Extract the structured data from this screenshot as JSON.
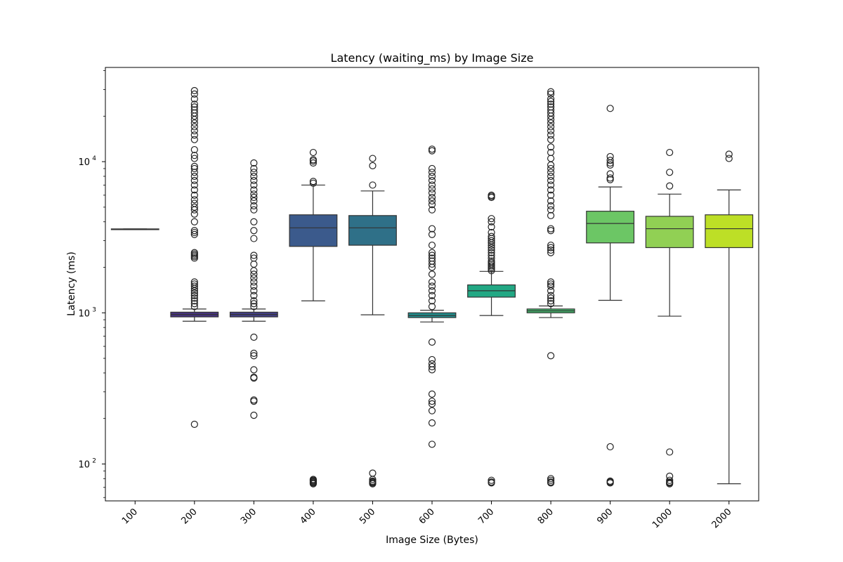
{
  "chart_data": {
    "type": "box",
    "title": "Latency (waiting_ms) by Image Size",
    "xlabel": "Image Size (Bytes)",
    "ylabel": "Latency (ms)",
    "yscale": "log",
    "ylim": [
      57,
      42000
    ],
    "y_tick_labels": [
      {
        "value": 100,
        "base": "10",
        "exp": "2"
      },
      {
        "value": 1000,
        "base": "10",
        "exp": "3"
      },
      {
        "value": 10000,
        "base": "10",
        "exp": "4"
      }
    ],
    "categories": [
      "100",
      "200",
      "300",
      "400",
      "500",
      "600",
      "700",
      "800",
      "900",
      "1000",
      "2000"
    ],
    "colors": [
      "#46327e",
      "#46327e",
      "#433e85",
      "#3b5a8c",
      "#2f7088",
      "#218f8d",
      "#22a884",
      "#44bf70",
      "#6cc665",
      "#91d054",
      "#bddf26"
    ],
    "boxes": [
      {
        "q1": 3550,
        "median": 3570,
        "q3": 3590,
        "whislo": 3550,
        "whishi": 3590,
        "fliers": []
      },
      {
        "q1": 940,
        "median": 975,
        "q3": 1010,
        "whislo": 880,
        "whishi": 1060,
        "fliers": [
          183,
          1100,
          1150,
          1200,
          1250,
          1300,
          1350,
          1400,
          1450,
          1500,
          1550,
          1600,
          2300,
          2350,
          2400,
          2450,
          2500,
          3300,
          3400,
          3500,
          4000,
          4500,
          4800,
          5000,
          5300,
          5600,
          6000,
          6500,
          7000,
          7500,
          8000,
          8500,
          9000,
          9300,
          10500,
          11000,
          12000,
          14000,
          15000,
          16000,
          17000,
          18000,
          19000,
          20000,
          21000,
          22000,
          23000,
          24000,
          26000,
          28000,
          29500
        ]
      },
      {
        "q1": 940,
        "median": 975,
        "q3": 1010,
        "whislo": 880,
        "whishi": 1060,
        "fliers": [
          210,
          260,
          265,
          370,
          375,
          420,
          520,
          540,
          690,
          1100,
          1150,
          1200,
          1300,
          1400,
          1500,
          1600,
          1700,
          1800,
          1900,
          2100,
          2300,
          2400,
          3100,
          3500,
          4000,
          4800,
          5100,
          5500,
          5800,
          6100,
          6500,
          7000,
          7500,
          8000,
          8500,
          9000,
          9800
        ]
      },
      {
        "q1": 2750,
        "median": 3650,
        "q3": 4450,
        "whislo": 1200,
        "whishi": 7000,
        "fliers": [
          74,
          75,
          76,
          77,
          78,
          79,
          7200,
          7400,
          9800,
          10100,
          10300,
          11500
        ]
      },
      {
        "q1": 2800,
        "median": 3650,
        "q3": 4400,
        "whislo": 970,
        "whishi": 6400,
        "fliers": [
          74,
          75,
          76,
          77,
          79,
          87,
          7000,
          9400,
          10500
        ]
      },
      {
        "q1": 930,
        "median": 960,
        "q3": 1000,
        "whislo": 870,
        "whishi": 1040,
        "fliers": [
          135,
          187,
          225,
          250,
          260,
          290,
          420,
          440,
          460,
          490,
          640,
          1100,
          1200,
          1300,
          1400,
          1500,
          1600,
          1800,
          2000,
          2100,
          2200,
          2300,
          2400,
          2500,
          2800,
          3300,
          3600,
          4800,
          5200,
          5500,
          5800,
          6200,
          6600,
          7000,
          7500,
          8000,
          8500,
          9000,
          11800,
          12100
        ]
      },
      {
        "q1": 1270,
        "median": 1400,
        "q3": 1530,
        "whislo": 960,
        "whishi": 1880,
        "fliers": [
          75,
          76,
          78,
          1900,
          1950,
          2000,
          2050,
          2100,
          2150,
          2200,
          2300,
          2400,
          2500,
          2600,
          2700,
          2800,
          2900,
          3000,
          3100,
          3200,
          3400,
          3700,
          4000,
          4200,
          5800,
          5900,
          6000
        ]
      },
      {
        "q1": 1000,
        "median": 1030,
        "q3": 1060,
        "whislo": 930,
        "whishi": 1110,
        "fliers": [
          75,
          76,
          78,
          80,
          520,
          1150,
          1200,
          1250,
          1300,
          1400,
          1500,
          1550,
          1600,
          2500,
          2600,
          2700,
          2800,
          3500,
          3600,
          4400,
          4800,
          5100,
          5500,
          6000,
          6500,
          7000,
          7500,
          8000,
          8500,
          9000,
          9500,
          10500,
          11500,
          12500,
          14000,
          15000,
          16000,
          17000,
          18000,
          19000,
          20000,
          21000,
          22000,
          23000,
          24000,
          25000,
          26000,
          28000,
          29000
        ]
      },
      {
        "q1": 2900,
        "median": 3900,
        "q3": 4700,
        "whislo": 1210,
        "whishi": 6800,
        "fliers": [
          75,
          76,
          77,
          130,
          7600,
          7800,
          8300,
          9500,
          9800,
          10200,
          10800,
          22500
        ]
      },
      {
        "q1": 2700,
        "median": 3600,
        "q3": 4350,
        "whislo": 950,
        "whishi": 6100,
        "fliers": [
          74,
          75,
          76,
          78,
          83,
          120,
          6900,
          8500,
          11500
        ]
      },
      {
        "q1": 2700,
        "median": 3600,
        "q3": 4450,
        "whislo": 74,
        "whishi": 6500,
        "fliers": [
          10500,
          11200
        ]
      }
    ]
  }
}
